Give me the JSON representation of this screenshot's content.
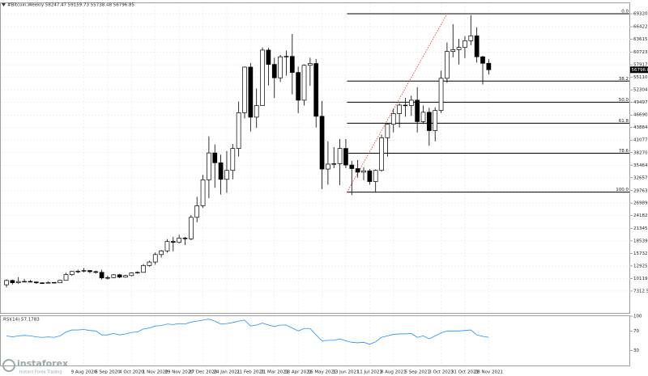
{
  "chart_data": [
    {
      "type": "candlestick",
      "title": "#Bitcoin,Weekly  58247.47 59159.73 55738.48 56796.85",
      "categories": [
        null,
        null,
        null,
        null,
        null,
        null,
        null,
        null,
        null,
        null,
        null,
        null,
        null,
        "9 Aug 2020",
        null,
        null,
        null,
        "6 Sep 2020",
        null,
        null,
        null,
        "4 Oct 2020",
        null,
        null,
        null,
        "1 Nov 2020",
        null,
        null,
        null,
        "29 Nov 2020",
        null,
        null,
        null,
        "27 Dec 2020",
        null,
        null,
        null,
        "24 Jan 2021",
        null,
        null,
        null,
        "21 Feb 2021",
        null,
        null,
        null,
        "21 Mar 2021",
        null,
        null,
        null,
        "18 Apr 2021",
        null,
        null,
        null,
        "16 May 2021",
        null,
        null,
        null,
        "13 Jun 2021",
        null,
        null,
        null,
        "11 Jul 2021",
        null,
        null,
        null,
        "8 Aug 2021",
        null,
        null,
        null,
        "5 Sep 2021",
        null,
        null,
        null,
        "3 Oct 2021",
        null,
        null,
        null,
        "31 Oct 2021",
        null,
        null,
        null,
        "28 Nov 2021"
      ],
      "open": [
        8720,
        9680,
        9180,
        9450,
        9470,
        9340,
        9150,
        9070,
        9250,
        9160,
        9700,
        11000,
        11700,
        11750,
        11900,
        11650,
        11500,
        10250,
        10320,
        10950,
        10420,
        10780,
        11380,
        11500,
        13030,
        13800,
        15480,
        16300,
        18400,
        18200,
        19150,
        19000,
        23800,
        26400,
        32200,
        38200,
        36000,
        32300,
        34300,
        39200,
        47200,
        57400,
        46200,
        48800,
        61200,
        58000,
        55000,
        59700,
        59800,
        56200,
        50000,
        57800,
        58200,
        46400,
        34600,
        35700,
        35800,
        39200,
        35500,
        34700,
        33900,
        34200,
        31800,
        34300,
        41600,
        44600,
        47000,
        48900,
        48800,
        50000,
        45200,
        47300,
        43200,
        47700,
        54900,
        60900,
        61300,
        61800,
        63300,
        64400,
        59700,
        58247.47
      ],
      "high": [
        9950,
        9880,
        10400,
        9990,
        9790,
        9430,
        9300,
        9450,
        9320,
        9800,
        11400,
        11780,
        12100,
        12450,
        12000,
        11900,
        12080,
        10750,
        11100,
        11150,
        10950,
        11500,
        11700,
        13350,
        14100,
        15960,
        16500,
        18950,
        19450,
        19900,
        19420,
        24300,
        28400,
        33300,
        41900,
        40100,
        37800,
        38600,
        40200,
        49700,
        57500,
        58300,
        52600,
        61800,
        61700,
        59500,
        60100,
        61100,
        64800,
        57500,
        58000,
        59500,
        59200,
        49800,
        40800,
        39500,
        41300,
        41300,
        36400,
        36600,
        35000,
        34600,
        34500,
        42300,
        44700,
        48100,
        49300,
        50500,
        51000,
        52900,
        48800,
        48300,
        48400,
        56600,
        62900,
        67000,
        63700,
        64300,
        69000,
        66300,
        59900,
        59159.73
      ],
      "low": [
        8150,
        8800,
        8900,
        9250,
        9220,
        8950,
        8900,
        9000,
        9050,
        9120,
        9650,
        10700,
        11300,
        11500,
        11300,
        11200,
        9900,
        9880,
        10200,
        10200,
        10300,
        10600,
        11200,
        11400,
        12800,
        13200,
        14800,
        15900,
        16200,
        18000,
        17600,
        18700,
        22700,
        25900,
        28100,
        30400,
        28900,
        29300,
        32300,
        37400,
        45900,
        43000,
        43800,
        49300,
        53300,
        50500,
        54100,
        55500,
        51300,
        47100,
        48800,
        53200,
        43900,
        30100,
        31100,
        34800,
        31000,
        34800,
        28800,
        32700,
        32100,
        31100,
        29300,
        34000,
        37400,
        42800,
        43900,
        46300,
        46500,
        42800,
        44700,
        39800,
        40800,
        47100,
        53900,
        59600,
        58000,
        59400,
        62300,
        58400,
        53500,
        55738.48
      ],
      "close": [
        9680,
        9180,
        9450,
        9470,
        9340,
        9150,
        9070,
        9250,
        9160,
        9700,
        11000,
        11700,
        11750,
        11900,
        11650,
        11500,
        10250,
        10320,
        10950,
        10420,
        10780,
        11380,
        11500,
        13030,
        13800,
        15480,
        16300,
        18400,
        18200,
        19150,
        19000,
        23800,
        26400,
        32200,
        38200,
        36000,
        32300,
        34300,
        39200,
        47200,
        57400,
        46200,
        48800,
        61200,
        58000,
        55000,
        59700,
        59800,
        56200,
        50000,
        57800,
        58200,
        46400,
        34600,
        35700,
        35800,
        39200,
        35500,
        34700,
        33900,
        34200,
        31800,
        34300,
        41600,
        44600,
        47000,
        48900,
        48800,
        50000,
        45200,
        47300,
        43200,
        47700,
        54900,
        60900,
        61300,
        61800,
        63300,
        64400,
        59700,
        58247.47,
        56796.85
      ],
      "up_color": "#ffffff",
      "down_color": "#000000",
      "ylim": [
        2240,
        71680
      ],
      "yticks": [
        {
          "value": 69320,
          "label": "69320.00"
        },
        {
          "value": 66422.3,
          "label": "66422.30"
        },
        {
          "value": 63615.6,
          "label": "63615.60"
        },
        {
          "value": 60723.55,
          "label": "60723.55"
        },
        {
          "value": 57917.3,
          "label": "57917.30"
        },
        {
          "value": 55110.65,
          "label": "55110.65"
        },
        {
          "value": 52304,
          "label": "52304.00"
        },
        {
          "value": 49497.35,
          "label": "49497.35"
        },
        {
          "value": 46690.7,
          "label": "46690.70"
        },
        {
          "value": 43884.05,
          "label": "43884.05"
        },
        {
          "value": 41077.4,
          "label": "41077.40"
        },
        {
          "value": 38270.75,
          "label": "38270.75"
        },
        {
          "value": 35464.1,
          "label": "35464.10"
        },
        {
          "value": 32657.45,
          "label": "32657.45"
        },
        {
          "value": 29763.75,
          "label": "29763.75"
        },
        {
          "value": 26989,
          "label": "26989.00"
        },
        {
          "value": 24182.35,
          "label": "24182.35"
        },
        {
          "value": 21345.7,
          "label": "21345.70"
        },
        {
          "value": 18539.1,
          "label": "18539.10"
        },
        {
          "value": 15732.45,
          "label": "15732.45"
        },
        {
          "value": 12925.8,
          "label": "12925.80"
        },
        {
          "value": 10119.2,
          "label": "10119.20"
        },
        {
          "value": 7312.55,
          "label": "7312.55"
        }
      ],
      "grid": true,
      "last_price": {
        "value": 56796.85,
        "label": "56796.85"
      },
      "fib_levels": [
        {
          "value": 69320,
          "label": "0.0"
        },
        {
          "value": 54270,
          "label": "38.2"
        },
        {
          "value": 49550,
          "label": "50.0"
        },
        {
          "value": 44840,
          "label": "61.8"
        },
        {
          "value": 38130,
          "label": "78.6"
        },
        {
          "value": 29430,
          "label": "100.0"
        }
      ],
      "watermark": {
        "brand": "instaforex",
        "tagline": "Instant Forex Trading"
      }
    },
    {
      "type": "line",
      "title": "RSI(14) 57.1783",
      "color": "#1e90ff",
      "values": [
        60,
        58,
        60,
        61,
        60,
        58,
        57,
        58,
        57,
        60,
        68,
        72,
        72,
        73,
        71,
        70,
        62,
        62,
        65,
        62,
        64,
        67,
        68,
        74,
        76,
        80,
        81,
        84,
        83,
        85,
        84,
        88,
        90,
        92,
        94,
        90,
        84,
        85,
        87,
        90,
        92,
        80,
        82,
        86,
        82,
        79,
        82,
        82,
        76,
        70,
        75,
        75,
        62,
        50,
        51,
        51,
        54,
        50,
        47,
        46,
        47,
        43,
        48,
        57,
        60,
        63,
        64,
        64,
        65,
        57,
        60,
        54,
        60,
        66,
        70,
        70,
        70,
        71,
        72,
        62,
        59,
        57.18
      ],
      "ylim": [
        0,
        100
      ],
      "yticks": [
        100,
        70,
        30
      ]
    }
  ]
}
